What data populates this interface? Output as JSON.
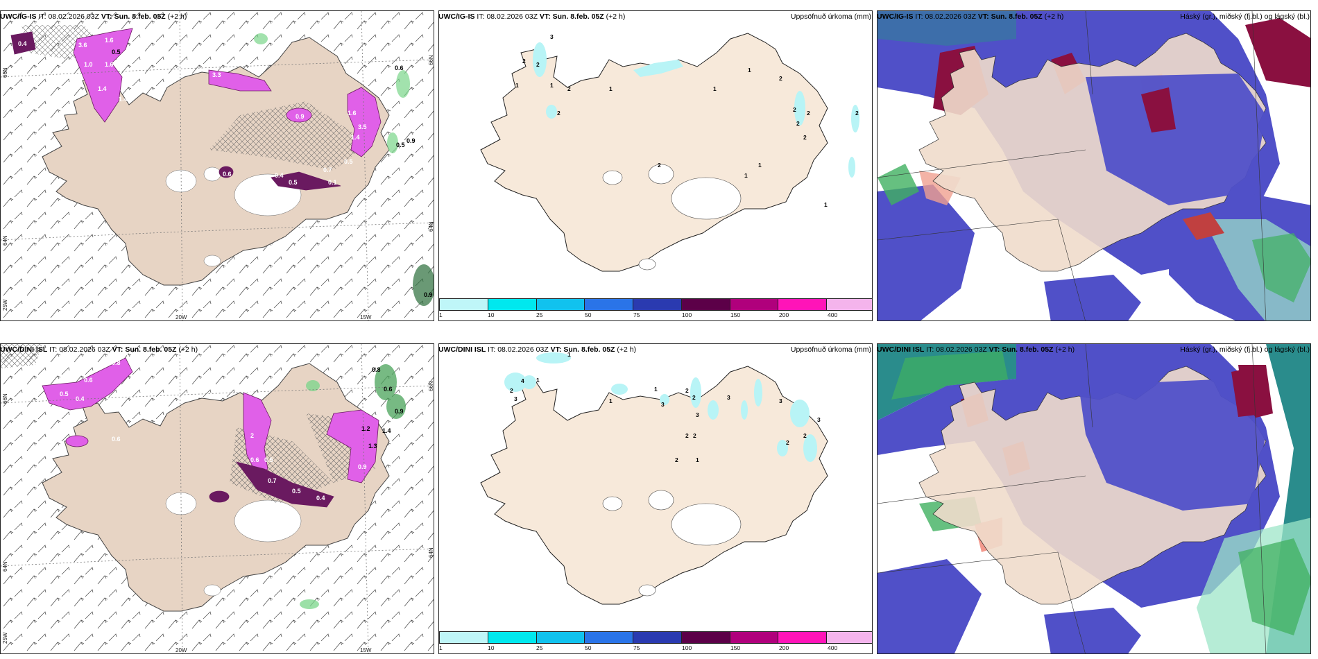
{
  "rows": [
    {
      "model": "UWC/IG-IS",
      "it_label": "IT:",
      "it_value": "08.02.2026 03Z",
      "vt_label": "VT:",
      "vt_value": "Sun. 8.feb. 05Z",
      "lead": "(+2 h)",
      "panel2_title": "Uppsöfnuð úrkoma (mm)",
      "panel3_title": "Háský (gr.), miðský (fj.bl.) og lágský (bl.)",
      "p1_labels": [
        "0.4",
        "3.6",
        "1.6",
        "3.3",
        "1.4",
        "0.5",
        "1.0",
        "1.6",
        "1.4",
        "1.6",
        "3.5",
        "0.9",
        "1.4",
        "0.6",
        "0.9",
        "0.5",
        "0.4",
        "0.5",
        "0.7",
        "0.1",
        "0.6",
        "0.5",
        "0.9"
      ],
      "p2_labels": [
        "3",
        "2",
        "2",
        "1",
        "1",
        "2",
        "2",
        "1",
        "1",
        "1",
        "2",
        "2",
        "2",
        "2",
        "2",
        "1",
        "1",
        "2",
        "1",
        "2"
      ]
    },
    {
      "model": "UWC/DINI ISL",
      "it_label": "IT:",
      "it_value": "08.02.2026 03Z",
      "vt_label": "VT:",
      "vt_value": "Sun. 8.feb. 05Z",
      "lead": "(+2 h)",
      "panel2_title": "Uppsöfnuð úrkoma (mm)",
      "panel3_title": "Háský (gr.), miðský (fj.bl.) og lágský (bl.)",
      "p1_labels": [
        "1.0",
        "0.8",
        "0.6",
        "0.5",
        "0.4",
        "0.6",
        "1.5",
        "2",
        "0.5",
        "0.6",
        "0.5",
        "0.7",
        "0.4",
        "1.2",
        "1.4",
        "1.3",
        "0.9",
        "0.8",
        "0.6",
        "0.9"
      ],
      "p2_labels": [
        "1",
        "4",
        "2",
        "3",
        "1",
        "1",
        "1",
        "3",
        "2",
        "2",
        "3",
        "3",
        "2",
        "2",
        "2",
        "1",
        "2",
        "3",
        "3",
        "2"
      ]
    }
  ],
  "axes": {
    "lat_top": "66N",
    "lat_mid": "64N",
    "lon_left": "25W",
    "lon_mid": "20W",
    "lon_right": "15W",
    "right_top": "66N",
    "right_mid": "64N"
  },
  "colorbar": {
    "ticks": [
      "1",
      "10",
      "25",
      "50",
      "75",
      "100",
      "150",
      "200",
      "400"
    ],
    "colors": [
      "#bff6f8",
      "#00e8ee",
      "#11c2ee",
      "#2a74e8",
      "#2a3ab0",
      "#5c0048",
      "#b0007c",
      "#ff14b8",
      "#f4b4ec"
    ]
  },
  "colors": {
    "land": "#f7e9da",
    "land_dark": "#e6d4c2",
    "purple_precip": "#e060e8",
    "dark_purple": "#6a1a60",
    "green_precip": "#7ad68a",
    "cyan_precip": "#b8f4f6",
    "cloud_blue": "#5050c8",
    "cloud_red": "#8a1040",
    "cloud_green": "#40b060",
    "cloud_teal": "#2a8c8c"
  }
}
